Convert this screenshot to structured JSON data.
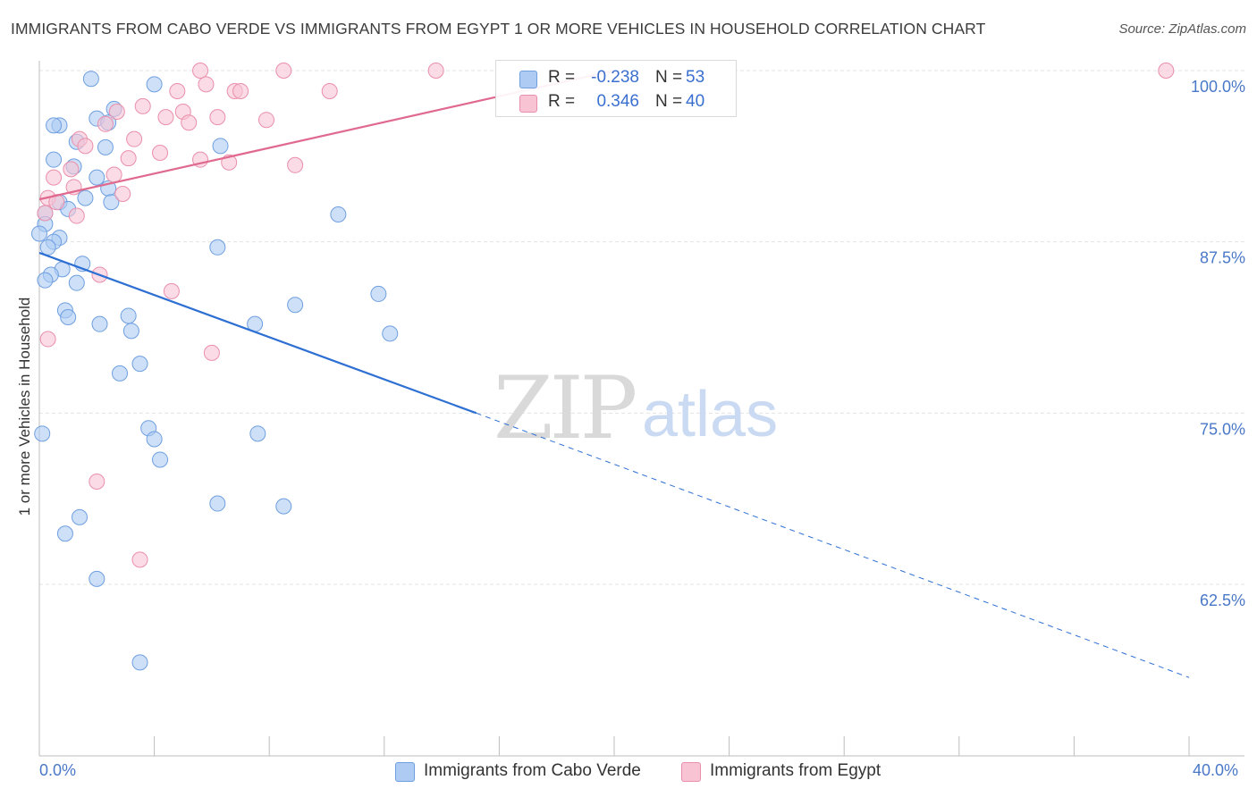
{
  "title": "IMMIGRANTS FROM CABO VERDE VS IMMIGRANTS FROM EGYPT 1 OR MORE VEHICLES IN HOUSEHOLD CORRELATION CHART",
  "source": "Source: ZipAtlas.com",
  "watermark": {
    "zip": "ZIP",
    "atlas": "atlas"
  },
  "colors": {
    "blue_fill": "#aecbf3",
    "blue_stroke": "#6e9fe0",
    "blue_line": "#2d6fd2",
    "pink_fill": "#f8c3d3",
    "pink_stroke": "#ea8fab",
    "pink_line": "#e0698f",
    "grid": "#e3e3e3",
    "axis_text": "#4a78c8"
  },
  "legend": {
    "rows": [
      {
        "r_label": "R =",
        "r_value": "-0.238",
        "n_label": "N =",
        "n_value": "53"
      },
      {
        "r_label": "R =",
        "r_value": "0.346",
        "n_label": "N =",
        "n_value": "40"
      }
    ]
  },
  "bottom_legend": {
    "blue": "Immigrants from Cabo Verde",
    "pink": "Immigrants from Egypt"
  },
  "x_axis": {
    "min_label": "0.0%",
    "max_label": "40.0%"
  },
  "chart_data": {
    "type": "scatter",
    "title": "IMMIGRANTS FROM CABO VERDE VS IMMIGRANTS FROM EGYPT 1 OR MORE VEHICLES IN HOUSEHOLD CORRELATION CHART",
    "xlabel": "",
    "ylabel": "1 or more Vehicles in Household",
    "xlim": [
      0,
      40
    ],
    "ylim": [
      50,
      101
    ],
    "y_ticks": [
      62.5,
      75.0,
      87.5,
      100.0
    ],
    "y_tick_labels": [
      "62.5%",
      "75.0%",
      "87.5%",
      "100.0%"
    ],
    "grid": true,
    "series": [
      {
        "name": "Immigrants from Cabo Verde",
        "color": "blue",
        "points": [
          [
            1.8,
            99.4
          ],
          [
            4.0,
            99.0
          ],
          [
            2.0,
            96.5
          ],
          [
            2.4,
            96.2
          ],
          [
            0.7,
            96.0
          ],
          [
            2.6,
            97.2
          ],
          [
            0.5,
            96.0
          ],
          [
            1.3,
            94.8
          ],
          [
            2.3,
            94.4
          ],
          [
            6.3,
            94.5
          ],
          [
            0.5,
            93.5
          ],
          [
            1.2,
            93.0
          ],
          [
            2.0,
            92.2
          ],
          [
            2.4,
            91.4
          ],
          [
            1.6,
            90.7
          ],
          [
            2.5,
            90.4
          ],
          [
            0.7,
            90.4
          ],
          [
            1.0,
            89.9
          ],
          [
            0.2,
            89.6
          ],
          [
            10.4,
            89.5
          ],
          [
            0.2,
            88.8
          ],
          [
            0.0,
            88.1
          ],
          [
            0.7,
            87.8
          ],
          [
            0.5,
            87.5
          ],
          [
            0.3,
            87.1
          ],
          [
            6.2,
            87.1
          ],
          [
            1.5,
            85.9
          ],
          [
            0.8,
            85.5
          ],
          [
            0.4,
            85.1
          ],
          [
            0.2,
            84.7
          ],
          [
            1.3,
            84.5
          ],
          [
            11.8,
            83.7
          ],
          [
            8.9,
            82.9
          ],
          [
            0.9,
            82.5
          ],
          [
            3.1,
            82.1
          ],
          [
            1.0,
            82.0
          ],
          [
            2.1,
            81.5
          ],
          [
            7.5,
            81.5
          ],
          [
            3.2,
            81.0
          ],
          [
            12.2,
            80.8
          ],
          [
            3.5,
            78.6
          ],
          [
            2.8,
            77.9
          ],
          [
            3.8,
            73.9
          ],
          [
            0.1,
            73.5
          ],
          [
            7.6,
            73.5
          ],
          [
            4.0,
            73.1
          ],
          [
            4.2,
            71.6
          ],
          [
            6.2,
            68.4
          ],
          [
            8.5,
            68.2
          ],
          [
            1.4,
            67.4
          ],
          [
            0.9,
            66.2
          ],
          [
            2.0,
            62.9
          ],
          [
            3.5,
            56.8
          ]
        ]
      },
      {
        "name": "Immigrants from Egypt",
        "color": "pink",
        "points": [
          [
            5.6,
            100.0
          ],
          [
            8.5,
            100.0
          ],
          [
            13.8,
            100.0
          ],
          [
            39.2,
            100.0
          ],
          [
            5.8,
            99.0
          ],
          [
            4.8,
            98.5
          ],
          [
            6.8,
            98.5
          ],
          [
            7.0,
            98.5
          ],
          [
            10.1,
            98.5
          ],
          [
            3.6,
            97.4
          ],
          [
            5.0,
            97.0
          ],
          [
            2.7,
            97.0
          ],
          [
            4.4,
            96.6
          ],
          [
            6.2,
            96.6
          ],
          [
            7.9,
            96.4
          ],
          [
            5.2,
            96.2
          ],
          [
            2.3,
            96.1
          ],
          [
            3.3,
            95.0
          ],
          [
            1.4,
            95.0
          ],
          [
            1.6,
            94.5
          ],
          [
            4.2,
            94.0
          ],
          [
            3.1,
            93.6
          ],
          [
            5.6,
            93.5
          ],
          [
            6.6,
            93.3
          ],
          [
            8.9,
            93.1
          ],
          [
            1.1,
            92.8
          ],
          [
            2.6,
            92.4
          ],
          [
            0.5,
            92.2
          ],
          [
            1.2,
            91.5
          ],
          [
            2.9,
            91.0
          ],
          [
            0.3,
            90.7
          ],
          [
            0.6,
            90.4
          ],
          [
            0.2,
            89.6
          ],
          [
            1.3,
            89.4
          ],
          [
            2.1,
            85.1
          ],
          [
            4.6,
            83.9
          ],
          [
            0.3,
            80.4
          ],
          [
            6.0,
            79.4
          ],
          [
            2.0,
            70.0
          ],
          [
            3.5,
            64.3
          ]
        ]
      }
    ],
    "trendlines": [
      {
        "series": "Immigrants from Cabo Verde",
        "x0": 0,
        "y0": 86.7,
        "x1": 15.2,
        "y1": 75.0,
        "dash_x1": 40,
        "dash_y1": 55.7
      },
      {
        "series": "Immigrants from Egypt",
        "x0": 0,
        "y0": 90.6,
        "x1": 20.0,
        "y1": 100.0
      }
    ]
  }
}
